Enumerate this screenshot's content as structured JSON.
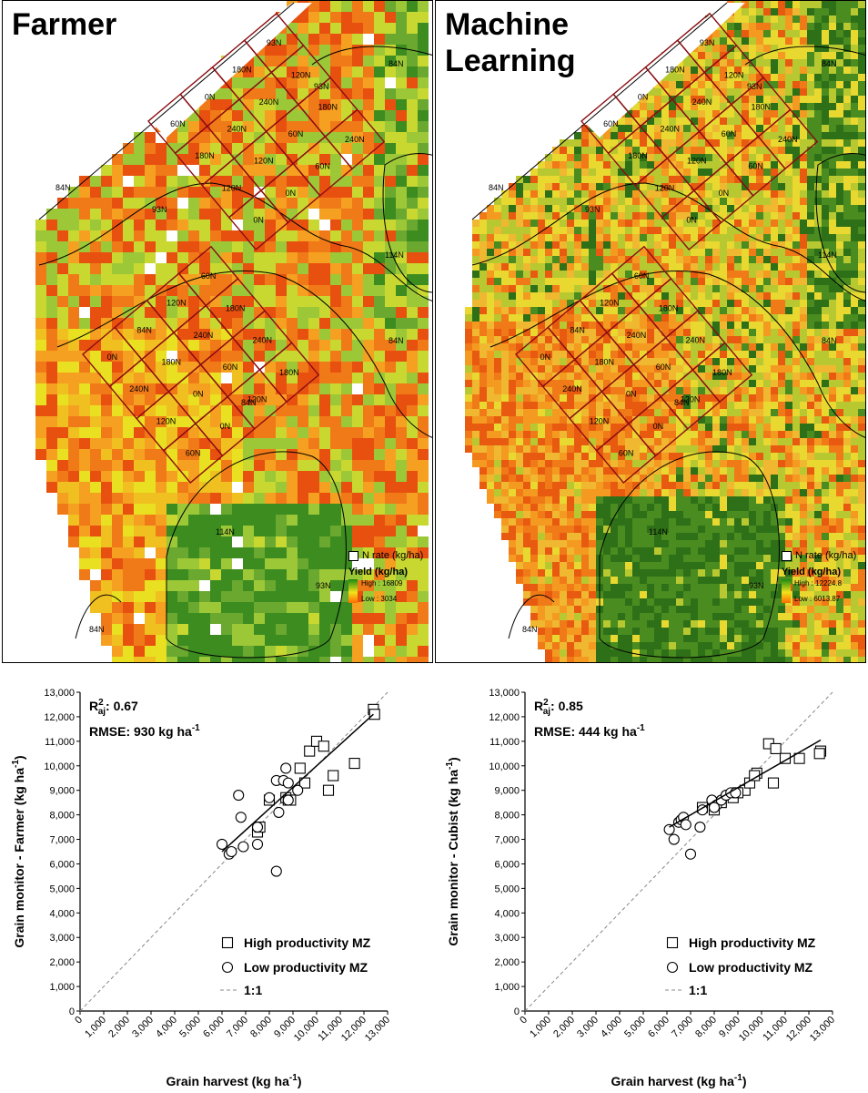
{
  "maps": [
    {
      "title": "Farmer",
      "legend": {
        "nrate": "N rate (kg/ha)",
        "yield_title": "Yield (kg/ha)",
        "high": "High : 16809",
        "low": "Low : 3034"
      },
      "zone_labels": [
        "84N",
        "93N",
        "84N",
        "93N",
        "114N",
        "84N",
        "84N",
        "114N",
        "93N",
        "84N"
      ],
      "trial_a": [
        "60N",
        "0N",
        "180N",
        "93N",
        "180N",
        "240N",
        "240N",
        "120N",
        "120N",
        "120N",
        "60N",
        "180N",
        "0N",
        "0N",
        "60N",
        "240N"
      ],
      "trial_b": [
        "0N",
        "84N",
        "120N",
        "60N",
        "240N",
        "180N",
        "240N",
        "180N",
        "120N",
        "0N",
        "60N",
        "240N",
        "60N",
        "0N",
        "120N",
        "180N"
      ]
    },
    {
      "title": "Machine Learning",
      "legend": {
        "nrate": "N rate (kg/ha)",
        "yield_title": "Yield (kg/ha)",
        "high": "High : 12224.8",
        "low": "Low : 6013.87"
      },
      "zone_labels": [
        "84N",
        "93N",
        "84N",
        "93N",
        "114N",
        "84N",
        "84N",
        "114N",
        "93N",
        "84N"
      ],
      "trial_a": [
        "60N",
        "0N",
        "180N",
        "93N",
        "180N",
        "240N",
        "240N",
        "120N",
        "120N",
        "120N",
        "60N",
        "180N",
        "0N",
        "0N",
        "60N",
        "240N"
      ],
      "trial_b": [
        "0N",
        "84N",
        "120N",
        "60N",
        "240N",
        "180N",
        "240N",
        "180N",
        "120N",
        "0N",
        "60N",
        "240N",
        "60N",
        "0N",
        "120N",
        "180N"
      ]
    }
  ],
  "chart_data": [
    {
      "type": "scatter",
      "stat_r2_prefix": "R",
      "stat_r2_sup": "2",
      "stat_r2_sub": "aj",
      "stat_r2_value": ": 0.67",
      "stat_rmse": "RMSE: 930 kg ha",
      "stat_rmse_sup": "-1",
      "xlabel": "Grain harvest (kg ha",
      "xlabel_sup": "-1",
      "xlabel_end": ")",
      "ylabel": "Grain monitor - Farmer (kg ha",
      "ylabel_sup": "-1",
      "ylabel_end": ")",
      "xlim": [
        0,
        13000
      ],
      "ylim": [
        0,
        13000
      ],
      "x_ticks": [
        "0",
        "1,000",
        "2,000",
        "3,000",
        "4,000",
        "5,000",
        "6,000",
        "7,000",
        "8,000",
        "9,000",
        "10,000",
        "11,000",
        "12,000",
        "13,000"
      ],
      "y_ticks": [
        "0",
        "1,000",
        "2,000",
        "3,000",
        "4,000",
        "5,000",
        "6,000",
        "7,000",
        "8,000",
        "9,000",
        "10,000",
        "11,000",
        "12,000",
        "13,000"
      ],
      "legend": [
        "High productivity MZ",
        "Low productivity MZ",
        "1:1"
      ],
      "series": [
        {
          "name": "High productivity MZ",
          "marker": "square",
          "x": [
            12400,
            12450,
            9700,
            10000,
            10300,
            9300,
            9500,
            11600,
            10700,
            10500,
            8700,
            8800,
            8900,
            7500,
            7600,
            8000
          ],
          "y": [
            12300,
            12100,
            10600,
            11000,
            10800,
            9900,
            9300,
            10100,
            9600,
            9000,
            8700,
            8600,
            8600,
            7300,
            7500,
            8600
          ]
        },
        {
          "name": "Low productivity MZ",
          "marker": "circle",
          "x": [
            6000,
            6300,
            6400,
            6700,
            6800,
            6900,
            7500,
            7500,
            8000,
            8300,
            8400,
            8600,
            8700,
            8800,
            8800,
            8300,
            9200
          ],
          "y": [
            6800,
            6400,
            6500,
            8800,
            7900,
            6700,
            6800,
            7500,
            8700,
            9400,
            8100,
            9400,
            9900,
            9300,
            8600,
            5700,
            9000
          ]
        }
      ],
      "fit": {
        "x": [
          6000,
          12400
        ],
        "y": [
          6500,
          12100
        ]
      }
    },
    {
      "type": "scatter",
      "stat_r2_prefix": "R",
      "stat_r2_sup": "2",
      "stat_r2_sub": "aj",
      "stat_r2_value": ": 0.85",
      "stat_rmse": "RMSE: 444 kg ha",
      "stat_rmse_sup": "-1",
      "xlabel": "Grain harvest (kg ha",
      "xlabel_sup": "-1",
      "xlabel_end": ")",
      "ylabel": "Grain monitor - Cubist (kg ha",
      "ylabel_sup": "-1",
      "ylabel_end": ")",
      "xlim": [
        0,
        13000
      ],
      "ylim": [
        0,
        13000
      ],
      "x_ticks": [
        "0",
        "1,000",
        "2,000",
        "3,000",
        "4,000",
        "5,000",
        "6,000",
        "7,000",
        "8,000",
        "9,000",
        "10,000",
        "11,000",
        "12,000",
        "13,000"
      ],
      "y_ticks": [
        "0",
        "1,000",
        "2,000",
        "3,000",
        "4,000",
        "5,000",
        "6,000",
        "7,000",
        "8,000",
        "9,000",
        "10,000",
        "11,000",
        "12,000",
        "13,000"
      ],
      "legend": [
        "High productivity MZ",
        "Low productivity MZ",
        "1:1"
      ],
      "series": [
        {
          "name": "High productivity MZ",
          "marker": "square",
          "x": [
            10300,
            10600,
            11000,
            11600,
            12500,
            12450,
            10500,
            9800,
            9300,
            9500,
            8800,
            9000,
            8300,
            8000,
            7500,
            9700
          ],
          "y": [
            10900,
            10700,
            10300,
            10300,
            10600,
            10500,
            9300,
            9700,
            9000,
            9300,
            8700,
            8900,
            8500,
            8200,
            8300,
            9600
          ]
        },
        {
          "name": "Low productivity MZ",
          "marker": "circle",
          "x": [
            6100,
            6300,
            6500,
            6600,
            6700,
            6800,
            7000,
            7400,
            7500,
            7900,
            8100,
            8300,
            8500,
            8700,
            8900,
            8000
          ],
          "y": [
            7400,
            7000,
            7700,
            7800,
            7900,
            7600,
            6400,
            7500,
            8200,
            8600,
            8400,
            8600,
            8800,
            8900,
            8900,
            8300
          ]
        }
      ],
      "fit": {
        "x": [
          6100,
          12500
        ],
        "y": [
          7500,
          11050
        ]
      }
    }
  ],
  "colors": {
    "trial_grid": "#8b0d12",
    "zone_line": "#000000",
    "fit_line": "#000000",
    "one_to_one": "#888888"
  }
}
